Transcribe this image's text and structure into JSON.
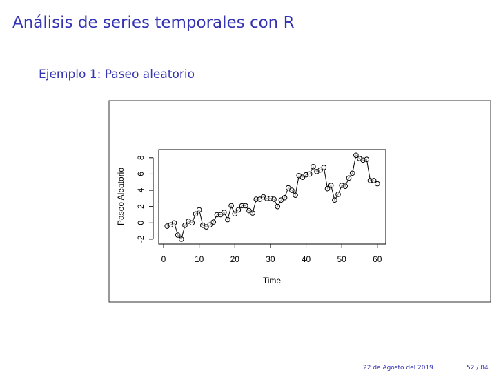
{
  "header": {
    "title": "Análisis de series temporales con R",
    "subtitle": "Ejemplo 1: Paseo aleatorio"
  },
  "footer": {
    "date": "22 de Agosto del 2019",
    "page": "52 / 84"
  },
  "chart_data": {
    "type": "line",
    "xlabel": "Time",
    "ylabel": "Paseo Aleatorio",
    "color": "#000000",
    "markers": "open-circle",
    "x": [
      1,
      2,
      3,
      4,
      5,
      6,
      7,
      8,
      9,
      10,
      11,
      12,
      13,
      14,
      15,
      16,
      17,
      18,
      19,
      20,
      21,
      22,
      23,
      24,
      25,
      26,
      27,
      28,
      29,
      30,
      31,
      32,
      33,
      34,
      35,
      36,
      37,
      38,
      39,
      40,
      41,
      42,
      43,
      44,
      45,
      46,
      47,
      48,
      49,
      50,
      51,
      52,
      53,
      54,
      55,
      56,
      57,
      58,
      59,
      60
    ],
    "values": [
      -0.4,
      -0.25,
      0.0,
      -1.5,
      -2.0,
      -0.3,
      0.2,
      0.0,
      1.1,
      1.6,
      -0.3,
      -0.5,
      -0.25,
      0.1,
      1.0,
      1.0,
      1.3,
      0.4,
      2.1,
      1.1,
      1.6,
      2.1,
      2.1,
      1.5,
      1.2,
      2.9,
      2.9,
      3.2,
      3.0,
      3.0,
      2.9,
      2.0,
      2.8,
      3.1,
      4.3,
      4.0,
      3.4,
      5.8,
      5.6,
      5.9,
      6.0,
      6.9,
      6.3,
      6.5,
      6.8,
      4.2,
      4.6,
      2.8,
      3.5,
      4.6,
      4.5,
      5.5,
      6.1,
      8.3,
      7.9,
      7.7,
      7.8,
      5.2,
      5.2,
      4.8
    ],
    "xlim": [
      -1.36,
      62.36
    ],
    "ylim": [
      -2.6,
      9.0
    ],
    "xticks": [
      0,
      10,
      20,
      30,
      40,
      50,
      60
    ],
    "yticks": [
      -2,
      0,
      2,
      4,
      6,
      8
    ]
  }
}
